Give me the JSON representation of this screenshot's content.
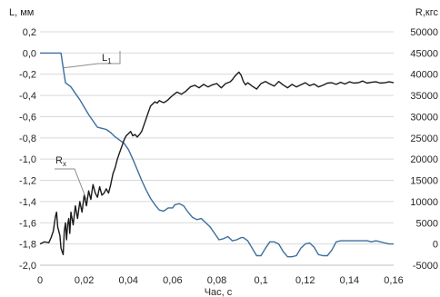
{
  "chart_data": {
    "type": "line",
    "left_axis_label": "L, мм",
    "right_axis_label": "R,кгс",
    "x_label": "Час, с",
    "xlim": [
      0,
      0.16
    ],
    "ylim_left": [
      -2.0,
      0.2
    ],
    "ylim_right": [
      -5000,
      50000
    ],
    "x_ticks": [
      {
        "v": 0,
        "t": "0"
      },
      {
        "v": 0.02,
        "t": "0,02"
      },
      {
        "v": 0.04,
        "t": "0,04"
      },
      {
        "v": 0.06,
        "t": "0,06"
      },
      {
        "v": 0.08,
        "t": "0,08"
      },
      {
        "v": 0.1,
        "t": "0,1"
      },
      {
        "v": 0.12,
        "t": "0,12"
      },
      {
        "v": 0.14,
        "t": "0,14"
      },
      {
        "v": 0.16,
        "t": "0,16"
      }
    ],
    "left_ticks": [
      {
        "v": 0.2,
        "t": "0,2"
      },
      {
        "v": 0.0,
        "t": "0,0"
      },
      {
        "v": -0.2,
        "t": "-0,2"
      },
      {
        "v": -0.4,
        "t": "-0,4"
      },
      {
        "v": -0.6,
        "t": "-0,6"
      },
      {
        "v": -0.8,
        "t": "-0,8"
      },
      {
        "v": -1.0,
        "t": "-1,0"
      },
      {
        "v": -1.2,
        "t": "-1,2"
      },
      {
        "v": -1.4,
        "t": "-1,4"
      },
      {
        "v": -1.6,
        "t": "-1,6"
      },
      {
        "v": -1.8,
        "t": "-1,8"
      },
      {
        "v": -2.0,
        "t": "-2,0"
      }
    ],
    "right_ticks": [
      {
        "v": 50000,
        "t": "50000"
      },
      {
        "v": 45000,
        "t": "45000"
      },
      {
        "v": 40000,
        "t": "40000"
      },
      {
        "v": 35000,
        "t": "35000"
      },
      {
        "v": 30000,
        "t": "30000"
      },
      {
        "v": 25000,
        "t": "25000"
      },
      {
        "v": 20000,
        "t": "20000"
      },
      {
        "v": 15000,
        "t": "15000"
      },
      {
        "v": 10000,
        "t": "10000"
      },
      {
        "v": 5000,
        "t": "5000"
      },
      {
        "v": 0,
        "t": "0"
      },
      {
        "v": -5000,
        "t": "-5000"
      }
    ],
    "grid": "horizontal",
    "series": [
      {
        "name": "L1",
        "axis": "left",
        "color": "#3c6e9f",
        "x": [
          0,
          0.0095,
          0.0105,
          0.0115,
          0.014,
          0.016,
          0.018,
          0.02,
          0.022,
          0.024,
          0.026,
          0.028,
          0.03,
          0.032,
          0.034,
          0.036,
          0.038,
          0.04,
          0.042,
          0.044,
          0.046,
          0.048,
          0.05,
          0.052,
          0.054,
          0.056,
          0.058,
          0.06,
          0.061,
          0.063,
          0.065,
          0.067,
          0.069,
          0.071,
          0.073,
          0.075,
          0.077,
          0.079,
          0.081,
          0.083,
          0.085,
          0.087,
          0.089,
          0.091,
          0.092,
          0.094,
          0.096,
          0.098,
          0.1,
          0.102,
          0.104,
          0.106,
          0.108,
          0.11,
          0.112,
          0.114,
          0.116,
          0.118,
          0.12,
          0.122,
          0.124,
          0.126,
          0.128,
          0.13,
          0.132,
          0.134,
          0.136,
          0.138,
          0.14,
          0.142,
          0.144,
          0.146,
          0.148,
          0.15,
          0.152,
          0.154,
          0.156,
          0.158,
          0.16
        ],
        "y": [
          0.0,
          0.0,
          -0.14,
          -0.28,
          -0.32,
          -0.38,
          -0.44,
          -0.51,
          -0.58,
          -0.64,
          -0.7,
          -0.71,
          -0.72,
          -0.75,
          -0.79,
          -0.82,
          -0.85,
          -0.91,
          -1.0,
          -1.1,
          -1.2,
          -1.29,
          -1.37,
          -1.43,
          -1.48,
          -1.49,
          -1.46,
          -1.46,
          -1.43,
          -1.42,
          -1.44,
          -1.5,
          -1.55,
          -1.57,
          -1.56,
          -1.6,
          -1.64,
          -1.7,
          -1.76,
          -1.75,
          -1.73,
          -1.77,
          -1.76,
          -1.74,
          -1.74,
          -1.77,
          -1.84,
          -1.91,
          -1.91,
          -1.84,
          -1.78,
          -1.78,
          -1.8,
          -1.87,
          -1.92,
          -1.92,
          -1.91,
          -1.84,
          -1.8,
          -1.79,
          -1.83,
          -1.9,
          -1.91,
          -1.91,
          -1.86,
          -1.78,
          -1.77,
          -1.77,
          -1.77,
          -1.77,
          -1.77,
          -1.77,
          -1.77,
          -1.78,
          -1.77,
          -1.78,
          -1.79,
          -1.8,
          -1.8
        ]
      },
      {
        "name": "Rx",
        "axis": "right",
        "color": "#1a1a1a",
        "x": [
          0,
          0.002,
          0.004,
          0.005,
          0.006,
          0.007,
          0.0075,
          0.008,
          0.009,
          0.0095,
          0.0105,
          0.011,
          0.0115,
          0.012,
          0.0125,
          0.013,
          0.0135,
          0.014,
          0.015,
          0.016,
          0.017,
          0.018,
          0.019,
          0.02,
          0.021,
          0.022,
          0.023,
          0.024,
          0.025,
          0.026,
          0.027,
          0.028,
          0.029,
          0.03,
          0.031,
          0.032,
          0.033,
          0.034,
          0.035,
          0.036,
          0.037,
          0.038,
          0.039,
          0.04,
          0.041,
          0.042,
          0.043,
          0.044,
          0.045,
          0.046,
          0.047,
          0.048,
          0.049,
          0.05,
          0.051,
          0.052,
          0.053,
          0.054,
          0.055,
          0.056,
          0.057,
          0.058,
          0.059,
          0.06,
          0.062,
          0.064,
          0.066,
          0.068,
          0.07,
          0.072,
          0.074,
          0.076,
          0.078,
          0.08,
          0.082,
          0.084,
          0.086,
          0.087,
          0.088,
          0.089,
          0.09,
          0.091,
          0.092,
          0.093,
          0.094,
          0.096,
          0.098,
          0.1,
          0.102,
          0.104,
          0.106,
          0.108,
          0.11,
          0.112,
          0.114,
          0.116,
          0.118,
          0.12,
          0.122,
          0.124,
          0.126,
          0.128,
          0.13,
          0.132,
          0.134,
          0.136,
          0.138,
          0.14,
          0.142,
          0.144,
          0.146,
          0.148,
          0.15,
          0.152,
          0.154,
          0.156,
          0.158,
          0.16
        ],
        "y": [
          0,
          500,
          300,
          1500,
          3000,
          6500,
          7500,
          4000,
          2000,
          -1000,
          -2500,
          3000,
          5000,
          1000,
          4500,
          6000,
          2500,
          7500,
          4500,
          9000,
          6000,
          10000,
          7500,
          11500,
          9000,
          12500,
          10500,
          14000,
          12000,
          11000,
          13500,
          11500,
          12000,
          13000,
          12000,
          14000,
          16500,
          18000,
          20000,
          21500,
          23000,
          24500,
          25500,
          26000,
          26500,
          25500,
          25800,
          25200,
          25800,
          26500,
          28000,
          29500,
          31000,
          32500,
          33000,
          33500,
          33200,
          33800,
          33500,
          33300,
          33600,
          34000,
          34500,
          35000,
          35800,
          35300,
          36000,
          37000,
          37400,
          36800,
          37600,
          37000,
          37500,
          37800,
          36800,
          37800,
          38200,
          38700,
          39400,
          40000,
          40500,
          39800,
          38300,
          37500,
          38000,
          37200,
          36500,
          37800,
          38300,
          37700,
          37200,
          38300,
          37500,
          36800,
          37600,
          37000,
          37500,
          38000,
          37300,
          37700,
          37000,
          37400,
          37900,
          38000,
          37600,
          38100,
          37700,
          38200,
          37900,
          38000,
          38400,
          37900,
          38100,
          38200,
          37900,
          38000,
          38200,
          38000
        ]
      }
    ],
    "annotations": [
      {
        "text": "L",
        "sub": "1",
        "target_series": "L1"
      },
      {
        "text": "R",
        "sub": "x",
        "target_series": "Rx"
      }
    ]
  }
}
